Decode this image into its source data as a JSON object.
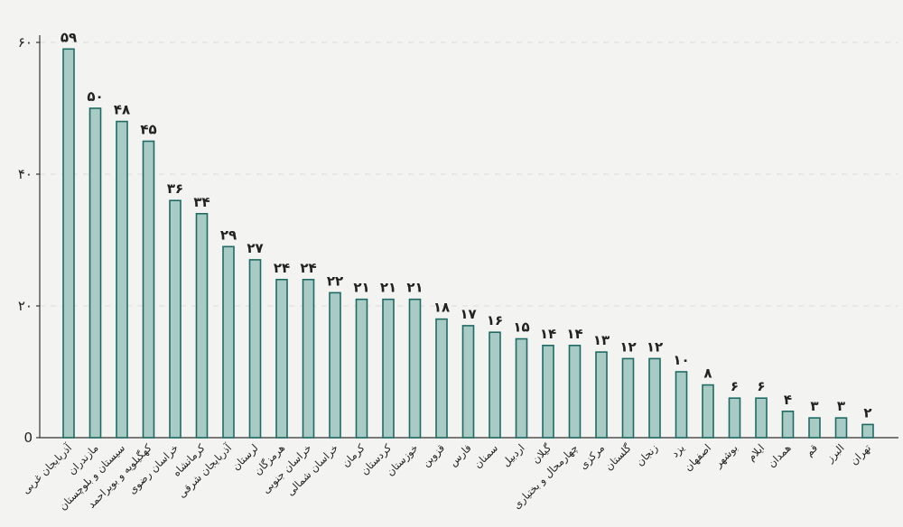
{
  "chart_data": {
    "type": "bar",
    "title": "",
    "xlabel": "",
    "ylabel": "",
    "ylim": [
      0,
      60
    ],
    "yticks": [
      {
        "value": 0,
        "label": "0"
      },
      {
        "value": 20,
        "label": "۲۰"
      },
      {
        "value": 40,
        "label": "۴۰"
      },
      {
        "value": 60,
        "label": "۶۰"
      }
    ],
    "grid": true,
    "categories": [
      "آذربایجان غربی",
      "مازندران",
      "سیستان و بلوچستان",
      "کهگیلویه و بویراحمد",
      "خراسان رضوی",
      "کرمانشاه",
      "آذربایجان شرقی",
      "لرستان",
      "هرمزگان",
      "خراسان جنوبی",
      "خراسان شمالی",
      "کرمان",
      "کردستان",
      "خوزستان",
      "قزوین",
      "فارس",
      "سمنان",
      "اردبیل",
      "گیلان",
      "چهارمحال و بختیاری",
      "مرکزی",
      "گلستان",
      "زنجان",
      "یزد",
      "اصفهان",
      "بوشهر",
      "ایلام",
      "همدان",
      "قم",
      "البرز",
      "تهران"
    ],
    "values": [
      59,
      50,
      48,
      45,
      36,
      34,
      29,
      27,
      24,
      24,
      22,
      21,
      21,
      21,
      18,
      17,
      16,
      15,
      14,
      14,
      13,
      12,
      12,
      10,
      8,
      6,
      6,
      4,
      3,
      3,
      2
    ],
    "value_labels": [
      "۵۹",
      "۵۰",
      "۴۸",
      "۴۵",
      "۳۶",
      "۳۴",
      "۲۹",
      "۲۷",
      "۲۴",
      "۲۴",
      "۲۲",
      "۲۱",
      "۲۱",
      "۲۱",
      "۱۸",
      "۱۷",
      "۱۶",
      "۱۵",
      "۱۴",
      "۱۴",
      "۱۳",
      "۱۲",
      "۱۲",
      "۱۰",
      "۸",
      "۶",
      "۶",
      "۴",
      "۳",
      "۳",
      "۲"
    ],
    "colors": {
      "bar_fill": "#a9cbc6",
      "bar_stroke": "#1f6b63"
    }
  }
}
